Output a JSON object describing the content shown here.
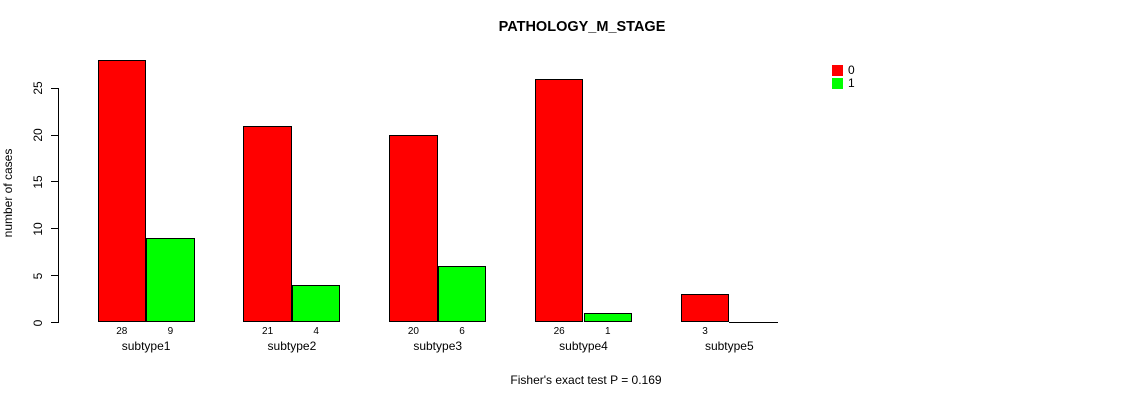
{
  "chart_data": {
    "type": "bar",
    "title": "PATHOLOGY_M_STAGE",
    "ylabel": "number of cases",
    "xlabel": "",
    "categories": [
      "subtype1",
      "subtype2",
      "subtype3",
      "subtype4",
      "subtype5"
    ],
    "series": [
      {
        "name": "0",
        "color": "#ff0000",
        "values": [
          28,
          21,
          20,
          26,
          3
        ]
      },
      {
        "name": "1",
        "color": "#00ff00",
        "values": [
          9,
          4,
          6,
          1,
          0
        ]
      }
    ],
    "value_labels": [
      [
        "28",
        "9"
      ],
      [
        "21",
        "4"
      ],
      [
        "20",
        "6"
      ],
      [
        "26",
        "1"
      ],
      [
        "3",
        ""
      ]
    ],
    "yticks": [
      0,
      5,
      10,
      15,
      20,
      25
    ],
    "ylim": [
      0,
      28
    ],
    "grid": false,
    "legend_position": "top-right",
    "bar_border_color": "#000000",
    "background_color": "#ffffff",
    "annotation": "Fisher's exact test P = 0.169"
  }
}
